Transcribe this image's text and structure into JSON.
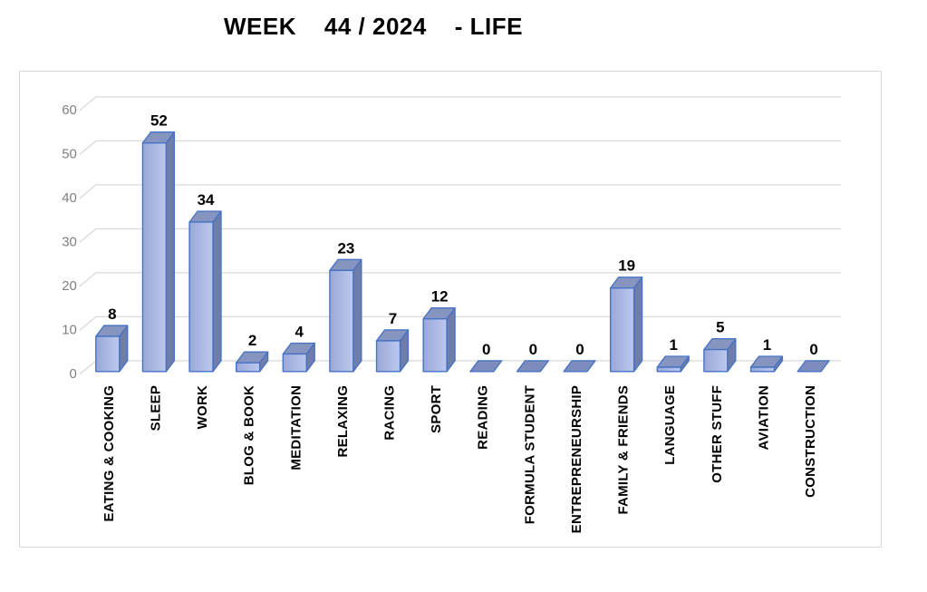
{
  "chart_data": {
    "type": "bar",
    "variant": "3d-column",
    "title": "WEEK    44 / 2024    - LIFE",
    "categories": [
      "EATING & COOKING",
      "SLEEP",
      "WORK",
      "BLOG & BOOK",
      "MEDITATION",
      "RELAXING",
      "RACING",
      "SPORT",
      "READING",
      "FORMULA STUDENT",
      "ENTREPRENEURSHIP",
      "FAMILY & FRIENDS",
      "LANGUAGE",
      "OTHER STUFF",
      "AVIATION",
      "CONSTRUCTION"
    ],
    "values": [
      8,
      52,
      34,
      2,
      4,
      23,
      7,
      12,
      0,
      0,
      0,
      19,
      1,
      5,
      1,
      0
    ],
    "value_labels_shown": true,
    "xlabel": "",
    "ylabel": "",
    "ylim": [
      0,
      60
    ],
    "yticks": [
      0,
      10,
      20,
      30,
      40,
      50,
      60
    ],
    "grid": true,
    "legend": false,
    "colors": {
      "bar_face_start": "#9aa8d8",
      "bar_face_end": "#bcc8ee",
      "bar_top": "#8694c0",
      "bar_side": "#6f7da9",
      "bar_zero": "#7d8cbc",
      "bar_stroke": "#4472c4",
      "gridline": "#d9d9d9",
      "tick_text": "#7f7f7f",
      "label_text": "#000000",
      "frame_border": "#d6d6d6",
      "background": "#ffffff"
    }
  }
}
